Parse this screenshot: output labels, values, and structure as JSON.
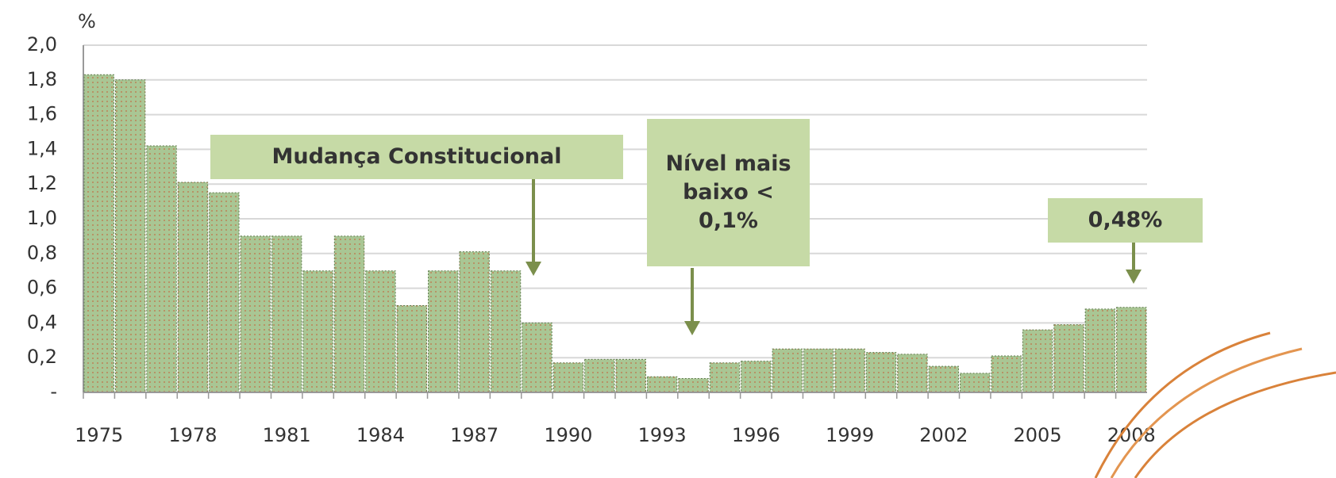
{
  "chart_data": {
    "type": "bar",
    "y_label": "%",
    "categories": [
      "1975",
      null,
      null,
      "1978",
      null,
      null,
      "1981",
      null,
      null,
      "1984",
      null,
      null,
      "1987",
      null,
      null,
      "1990",
      null,
      null,
      "1993",
      null,
      null,
      "1996",
      null,
      null,
      "1999",
      null,
      null,
      "2002",
      null,
      null,
      "2005",
      null,
      null,
      "2008"
    ],
    "values": [
      1.83,
      1.8,
      1.42,
      1.21,
      1.15,
      0.9,
      0.9,
      0.7,
      0.9,
      0.7,
      0.5,
      0.7,
      0.81,
      0.7,
      0.4,
      0.17,
      0.19,
      0.19,
      0.09,
      0.08,
      0.17,
      0.18,
      0.25,
      0.25,
      0.25,
      0.23,
      0.22,
      0.15,
      0.11,
      0.21,
      0.36,
      0.39,
      0.48,
      0.49
    ],
    "color": "#a9c694",
    "ylim": [
      0,
      2.0
    ],
    "yticks": [
      {
        "value": 0,
        "label": "-"
      },
      {
        "value": 0.2,
        "label": "0,2"
      },
      {
        "value": 0.4,
        "label": "0,4"
      },
      {
        "value": 0.6,
        "label": "0,6"
      },
      {
        "value": 0.8,
        "label": "0,8"
      },
      {
        "value": 1.0,
        "label": "1,0"
      },
      {
        "value": 1.2,
        "label": "1,2"
      },
      {
        "value": 1.4,
        "label": "1,4"
      },
      {
        "value": 1.6,
        "label": "1,6"
      },
      {
        "value": 1.8,
        "label": "1,8"
      },
      {
        "value": 2.0,
        "label": "2,0"
      }
    ],
    "grid": true,
    "annotations": [
      "Mudança Constitucional",
      "Nível mais baixo < 0,1%",
      "0,48%"
    ]
  }
}
